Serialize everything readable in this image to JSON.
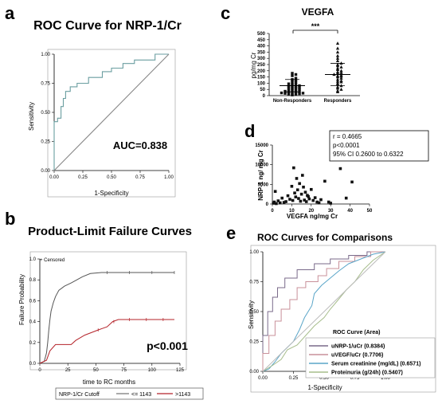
{
  "chart_data": [
    {
      "panel": "a",
      "type": "line",
      "title": "ROC Curve for NRP-1/Cr",
      "xlabel": "1-Specificity",
      "ylabel": "Sensitivity",
      "xticks": [
        "0.00",
        "0.25",
        "0.50",
        "0.75",
        "1.00"
      ],
      "yticks": [
        "0.00",
        "0.25",
        "0.50",
        "0.75",
        "1.00"
      ],
      "xlim": [
        0,
        1
      ],
      "ylim": [
        0,
        1
      ],
      "annotation": "AUC=0.838",
      "series": [
        {
          "color": "#6a9ea0",
          "points": [
            [
              0,
              0
            ],
            [
              0,
              0.42
            ],
            [
              0.03,
              0.42
            ],
            [
              0.03,
              0.45
            ],
            [
              0.06,
              0.45
            ],
            [
              0.06,
              0.55
            ],
            [
              0.08,
              0.55
            ],
            [
              0.08,
              0.62
            ],
            [
              0.1,
              0.62
            ],
            [
              0.1,
              0.68
            ],
            [
              0.14,
              0.68
            ],
            [
              0.14,
              0.72
            ],
            [
              0.2,
              0.72
            ],
            [
              0.2,
              0.75
            ],
            [
              0.3,
              0.75
            ],
            [
              0.3,
              0.8
            ],
            [
              0.42,
              0.8
            ],
            [
              0.42,
              0.85
            ],
            [
              0.5,
              0.85
            ],
            [
              0.5,
              0.88
            ],
            [
              0.6,
              0.88
            ],
            [
              0.6,
              0.92
            ],
            [
              0.7,
              0.92
            ],
            [
              0.7,
              0.95
            ],
            [
              0.88,
              0.95
            ],
            [
              0.88,
              1.0
            ],
            [
              1,
              1
            ]
          ]
        },
        {
          "color": "#888888",
          "points": [
            [
              0,
              0
            ],
            [
              1,
              1
            ]
          ]
        }
      ]
    },
    {
      "panel": "b",
      "type": "line",
      "title": "Product-Limit Failure Curves",
      "xlabel": "time to RC months",
      "ylabel": "Failure Probability",
      "xticks": [
        "0",
        "25",
        "50",
        "75",
        "100",
        "125"
      ],
      "yticks": [
        "0.0",
        "0.2",
        "0.4",
        "0.6",
        "0.8",
        "1.0"
      ],
      "xlim": [
        0,
        125
      ],
      "ylim": [
        0,
        1
      ],
      "annotation": "p<0.001",
      "legend_inset": "+ Censored",
      "legend_title": "NRP-1/Cr Cutoff",
      "series": [
        {
          "name": "<= 1143",
          "color": "#555555",
          "points": [
            [
              0,
              0
            ],
            [
              4,
              0.02
            ],
            [
              6,
              0.1
            ],
            [
              7,
              0.2
            ],
            [
              8,
              0.32
            ],
            [
              9,
              0.42
            ],
            [
              10,
              0.5
            ],
            [
              12,
              0.58
            ],
            [
              14,
              0.64
            ],
            [
              17,
              0.7
            ],
            [
              22,
              0.74
            ],
            [
              28,
              0.77
            ],
            [
              33,
              0.8
            ],
            [
              38,
              0.83
            ],
            [
              45,
              0.86
            ],
            [
              55,
              0.87
            ],
            [
              120,
              0.87
            ]
          ]
        },
        {
          "name": ">1143",
          "color": "#b4232a",
          "points": [
            [
              0,
              0
            ],
            [
              6,
              0.03
            ],
            [
              9,
              0.12
            ],
            [
              14,
              0.18
            ],
            [
              28,
              0.18
            ],
            [
              32,
              0.22
            ],
            [
              40,
              0.27
            ],
            [
              52,
              0.32
            ],
            [
              60,
              0.35
            ],
            [
              65,
              0.4
            ],
            [
              70,
              0.42
            ],
            [
              120,
              0.42
            ]
          ]
        }
      ]
    },
    {
      "panel": "c",
      "type": "scatter",
      "title": "VEGFA",
      "ylabel": "pg/mg Cr",
      "categories": [
        "Non-Responders",
        "Responders"
      ],
      "yticks": [
        "0",
        "50",
        "100",
        "150",
        "200",
        "250",
        "300",
        "350",
        "400",
        "450",
        "500"
      ],
      "ylim": [
        0,
        500
      ],
      "significance": "***",
      "groups": [
        {
          "name": "Non-Responders",
          "marker": "square",
          "mean": 80,
          "sd": 50,
          "values": [
            5,
            8,
            10,
            12,
            15,
            18,
            20,
            22,
            25,
            28,
            30,
            32,
            35,
            40,
            42,
            45,
            50,
            55,
            60,
            62,
            65,
            68,
            70,
            75,
            80,
            85,
            90,
            95,
            100,
            110,
            120,
            125,
            130,
            140,
            160,
            170,
            180
          ]
        },
        {
          "name": "Responders",
          "marker": "triangle",
          "mean": 170,
          "sd": 90,
          "values": [
            30,
            40,
            50,
            60,
            70,
            80,
            90,
            100,
            110,
            115,
            120,
            130,
            140,
            150,
            155,
            160,
            165,
            170,
            180,
            185,
            190,
            200,
            210,
            220,
            230,
            240,
            250,
            260,
            280,
            300,
            320,
            350,
            380,
            420
          ]
        }
      ]
    },
    {
      "panel": "d",
      "type": "scatter",
      "xlabel": "VEGFA ng/mg Cr",
      "ylabel": "NRP-1 ng/ mg Cr",
      "xticks": [
        "0",
        "10",
        "20",
        "30",
        "40",
        "50"
      ],
      "yticks": [
        "0",
        "5000",
        "10000",
        "15000"
      ],
      "xlim": [
        0,
        50
      ],
      "ylim": [
        0,
        15000
      ],
      "stats": [
        "r = 0.4665",
        "p<0.0001",
        "95% CI  0.2600 to 0.6322"
      ],
      "points": [
        [
          0.5,
          200
        ],
        [
          1,
          500
        ],
        [
          1.5,
          3200
        ],
        [
          2,
          100
        ],
        [
          3,
          800
        ],
        [
          4,
          300
        ],
        [
          5,
          1500
        ],
        [
          6,
          400
        ],
        [
          7,
          600
        ],
        [
          8,
          2100
        ],
        [
          9,
          1200
        ],
        [
          10,
          4500
        ],
        [
          10.5,
          900
        ],
        [
          11,
          9200
        ],
        [
          11.5,
          2800
        ],
        [
          12,
          1800
        ],
        [
          12.5,
          6500
        ],
        [
          13,
          3600
        ],
        [
          13.5,
          1400
        ],
        [
          14,
          5200
        ],
        [
          14.5,
          700
        ],
        [
          15,
          2500
        ],
        [
          15.5,
          7300
        ],
        [
          16,
          4300
        ],
        [
          16.5,
          1000
        ],
        [
          17,
          3000
        ],
        [
          17.5,
          600
        ],
        [
          18,
          2200
        ],
        [
          18.5,
          1900
        ],
        [
          19,
          1300
        ],
        [
          20,
          3700
        ],
        [
          21,
          900
        ],
        [
          22,
          1600
        ],
        [
          23,
          500
        ],
        [
          24,
          300
        ],
        [
          25,
          1100
        ],
        [
          27,
          5800
        ],
        [
          29,
          500
        ],
        [
          30,
          200
        ],
        [
          35,
          9000
        ],
        [
          38,
          1500
        ],
        [
          41,
          5600
        ]
      ]
    },
    {
      "panel": "e",
      "type": "line",
      "title": "ROC Curves for Comparisons",
      "xlabel": "1-Specificity",
      "ylabel": "Sensitivity",
      "xticks": [
        "0.00",
        "0.25",
        "0.50",
        "0.75",
        "1.00"
      ],
      "yticks": [
        "0.00",
        "0.25",
        "0.50",
        "0.75",
        "1.00"
      ],
      "xlim": [
        0,
        1
      ],
      "ylim": [
        0,
        1
      ],
      "legend_title": "ROC Curve (Area)",
      "series": [
        {
          "name": "uNRP-1/uCr (0.8384)",
          "color": "#7a6a8a",
          "points": [
            [
              0,
              0
            ],
            [
              0,
              0.3
            ],
            [
              0.04,
              0.3
            ],
            [
              0.04,
              0.5
            ],
            [
              0.08,
              0.5
            ],
            [
              0.08,
              0.62
            ],
            [
              0.12,
              0.62
            ],
            [
              0.12,
              0.7
            ],
            [
              0.18,
              0.7
            ],
            [
              0.18,
              0.78
            ],
            [
              0.28,
              0.78
            ],
            [
              0.28,
              0.85
            ],
            [
              0.42,
              0.85
            ],
            [
              0.42,
              0.9
            ],
            [
              0.55,
              0.9
            ],
            [
              0.55,
              0.94
            ],
            [
              0.7,
              0.94
            ],
            [
              0.7,
              0.97
            ],
            [
              0.85,
              0.97
            ],
            [
              0.85,
              1.0
            ],
            [
              1,
              1
            ]
          ]
        },
        {
          "name": "uVEGF/uCr (0.7706)",
          "color": "#c9909a",
          "points": [
            [
              0,
              0
            ],
            [
              0,
              0.15
            ],
            [
              0.05,
              0.15
            ],
            [
              0.05,
              0.3
            ],
            [
              0.1,
              0.3
            ],
            [
              0.1,
              0.42
            ],
            [
              0.15,
              0.42
            ],
            [
              0.15,
              0.52
            ],
            [
              0.22,
              0.52
            ],
            [
              0.22,
              0.6
            ],
            [
              0.28,
              0.6
            ],
            [
              0.28,
              0.7
            ],
            [
              0.35,
              0.7
            ],
            [
              0.35,
              0.75
            ],
            [
              0.45,
              0.75
            ],
            [
              0.45,
              0.8
            ],
            [
              0.52,
              0.8
            ],
            [
              0.52,
              0.86
            ],
            [
              0.62,
              0.86
            ],
            [
              0.62,
              0.92
            ],
            [
              0.75,
              0.92
            ],
            [
              0.75,
              0.96
            ],
            [
              0.88,
              0.96
            ],
            [
              0.88,
              1.0
            ],
            [
              1,
              1
            ]
          ]
        },
        {
          "name": "Serum creatinine (mg/dL) (0.6571)",
          "color": "#5aa5c8",
          "points": [
            [
              0,
              0
            ],
            [
              0.05,
              0.02
            ],
            [
              0.1,
              0.08
            ],
            [
              0.15,
              0.15
            ],
            [
              0.2,
              0.2
            ],
            [
              0.25,
              0.25
            ],
            [
              0.3,
              0.35
            ],
            [
              0.34,
              0.45
            ],
            [
              0.4,
              0.55
            ],
            [
              0.42,
              0.65
            ],
            [
              0.48,
              0.72
            ],
            [
              0.55,
              0.78
            ],
            [
              0.62,
              0.84
            ],
            [
              0.7,
              0.9
            ],
            [
              0.8,
              0.94
            ],
            [
              0.9,
              0.98
            ],
            [
              1,
              1
            ]
          ]
        },
        {
          "name": "Proteinuria (g/24h) (0.5407)",
          "color": "#a7bd8c",
          "points": [
            [
              0,
              0
            ],
            [
              0.08,
              0.05
            ],
            [
              0.15,
              0.1
            ],
            [
              0.2,
              0.18
            ],
            [
              0.28,
              0.22
            ],
            [
              0.35,
              0.3
            ],
            [
              0.42,
              0.38
            ],
            [
              0.5,
              0.45
            ],
            [
              0.55,
              0.52
            ],
            [
              0.6,
              0.58
            ],
            [
              0.68,
              0.68
            ],
            [
              0.75,
              0.75
            ],
            [
              0.82,
              0.85
            ],
            [
              0.9,
              0.93
            ],
            [
              1,
              1
            ]
          ]
        },
        {
          "color": "#bbbbbb",
          "points": [
            [
              0,
              0
            ],
            [
              1,
              1
            ]
          ]
        }
      ]
    }
  ],
  "panel_letters": [
    "a",
    "b",
    "c",
    "d",
    "e"
  ]
}
